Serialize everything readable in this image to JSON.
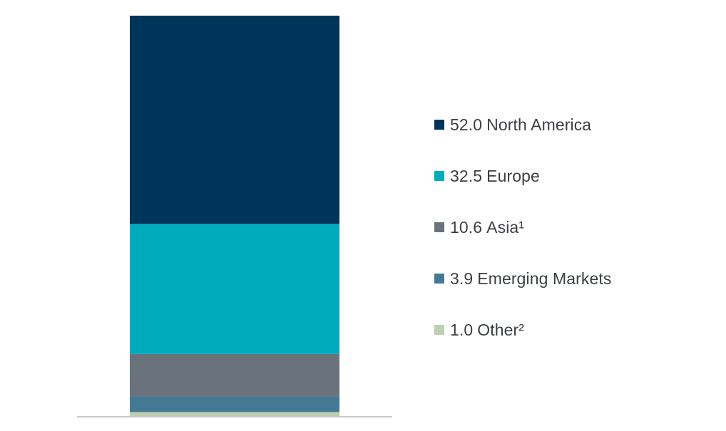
{
  "chart_data": {
    "type": "bar",
    "stacked": true,
    "total": 100,
    "legend_placement": "right",
    "grid": false,
    "series": [
      {
        "name": "North America",
        "value": 52.0,
        "label": "52.0",
        "color": "#00355a"
      },
      {
        "name": "Europe",
        "value": 32.5,
        "label": "32.5",
        "color": "#00abbe"
      },
      {
        "name": "Asia¹",
        "value": 10.6,
        "label": "10.6",
        "color": "#6a727b"
      },
      {
        "name": "Emerging Markets",
        "value": 3.9,
        "label": "3.9",
        "color": "#447995"
      },
      {
        "name": "Other²",
        "value": 1.0,
        "label": "1.0",
        "color": "#bfcfaf"
      }
    ],
    "baseline_color": "#c8c8c8"
  }
}
